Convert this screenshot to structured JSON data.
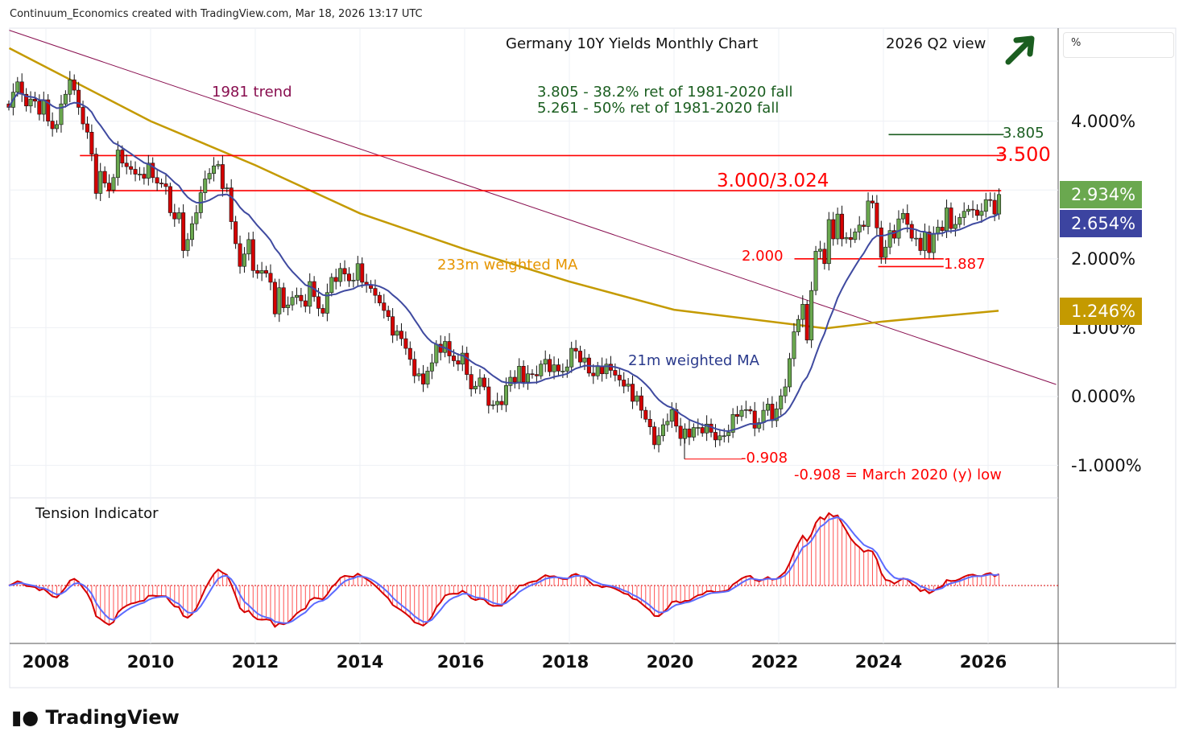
{
  "header": {
    "attribution": "Continuum_Economics created with TradingView.com, Mar 18, 2026 13:17 UTC",
    "logo": "TradingView"
  },
  "chart_data": {
    "type": "candlestick",
    "title": "Germany 10Y Yields Monthly Chart",
    "subtitle": "2026 Q2 view",
    "view_arrow": "up",
    "y_unit": "%",
    "ylim": [
      -1.45,
      5.35
    ],
    "y_ticks": [
      "4.000%",
      "2.000%",
      "1.000%",
      "0.000%",
      "-1.000%"
    ],
    "y_tick_values": [
      4,
      2,
      1,
      0,
      -1
    ],
    "x_ticks": [
      "2008",
      "2010",
      "2012",
      "2014",
      "2016",
      "2018",
      "2020",
      "2022",
      "2024",
      "2026"
    ],
    "x_tick_years": [
      2008,
      2010,
      2012,
      2014,
      2016,
      2018,
      2020,
      2022,
      2024,
      2026
    ],
    "start_month": "2007-04",
    "monthly_close": [
      4.2,
      4.42,
      4.57,
      4.39,
      4.22,
      4.32,
      4.29,
      4.1,
      4.31,
      4.0,
      3.89,
      3.95,
      4.25,
      4.39,
      4.6,
      4.45,
      4.2,
      3.96,
      3.84,
      3.52,
      2.95,
      3.27,
      3.1,
      3.0,
      3.18,
      3.58,
      3.39,
      3.34,
      3.3,
      3.23,
      3.23,
      3.17,
      3.39,
      3.18,
      3.1,
      3.09,
      3.05,
      2.67,
      2.58,
      2.67,
      2.12,
      2.28,
      2.51,
      2.67,
      2.96,
      3.16,
      3.24,
      3.35,
      3.37,
      3.02,
      3.03,
      2.54,
      2.22,
      1.89,
      2.07,
      2.28,
      1.83,
      1.79,
      1.83,
      1.79,
      1.66,
      1.2,
      1.58,
      1.29,
      1.33,
      1.44,
      1.47,
      1.39,
      1.31,
      1.67,
      1.45,
      1.28,
      1.21,
      1.51,
      1.73,
      1.67,
      1.86,
      1.78,
      1.68,
      1.69,
      1.93,
      1.66,
      1.62,
      1.57,
      1.47,
      1.36,
      1.25,
      1.16,
      0.89,
      0.95,
      0.84,
      0.7,
      0.54,
      0.3,
      0.33,
      0.18,
      0.37,
      0.49,
      0.76,
      0.64,
      0.8,
      0.59,
      0.52,
      0.47,
      0.63,
      0.32,
      0.11,
      0.15,
      0.27,
      0.14,
      -0.13,
      -0.12,
      -0.07,
      -0.12,
      0.16,
      0.28,
      0.21,
      0.44,
      0.21,
      0.33,
      0.32,
      0.3,
      0.47,
      0.54,
      0.36,
      0.46,
      0.37,
      0.37,
      0.43,
      0.7,
      0.66,
      0.5,
      0.56,
      0.34,
      0.3,
      0.44,
      0.33,
      0.47,
      0.38,
      0.31,
      0.24,
      0.15,
      0.18,
      -0.07,
      0.01,
      -0.2,
      -0.33,
      -0.44,
      -0.7,
      -0.57,
      -0.41,
      -0.36,
      -0.19,
      -0.43,
      -0.61,
      -0.47,
      -0.59,
      -0.45,
      -0.45,
      -0.53,
      -0.4,
      -0.52,
      -0.63,
      -0.57,
      -0.57,
      -0.52,
      -0.26,
      -0.29,
      -0.2,
      -0.19,
      -0.21,
      -0.46,
      -0.38,
      -0.2,
      -0.11,
      -0.35,
      -0.18,
      0.01,
      0.14,
      0.55,
      0.94,
      1.12,
      1.34,
      0.82,
      1.54,
      2.11,
      2.14,
      1.93,
      2.57,
      2.29,
      2.65,
      2.29,
      2.31,
      2.28,
      2.39,
      2.49,
      2.47,
      2.84,
      2.81,
      2.45,
      2.02,
      2.17,
      2.41,
      2.3,
      2.58,
      2.66,
      2.5,
      2.3,
      2.3,
      2.12,
      2.39,
      2.09,
      2.36,
      2.46,
      2.41,
      2.74,
      2.44,
      2.5,
      2.6,
      2.69,
      2.72,
      2.71,
      2.63,
      2.69,
      2.86,
      2.85,
      2.65,
      2.934
    ],
    "ma233_anchors": [
      [
        2007.3,
        5.06
      ],
      [
        2010,
        4.0
      ],
      [
        2012,
        3.36
      ],
      [
        2014,
        2.66
      ],
      [
        2016,
        2.14
      ],
      [
        2018,
        1.67
      ],
      [
        2020,
        1.26
      ],
      [
        2022.9,
        0.99
      ],
      [
        2024,
        1.09
      ],
      [
        2026.2,
        1.246
      ]
    ],
    "trend_1981": [
      [
        2007.3,
        5.32
      ],
      [
        2027.3,
        0.175
      ]
    ],
    "levels": [
      {
        "value": 3.805,
        "from": 2024.1,
        "to": 2026.3,
        "color": "#1b5e20",
        "label": "3.805"
      },
      {
        "value": 3.5,
        "from": 2008.65,
        "to": 2026.3,
        "color": "#ff0000",
        "label": "3.500"
      },
      {
        "value": 2.99,
        "from": 2009.15,
        "to": 2026.25,
        "color": "#ff0000",
        "label": "3.000/3.024"
      },
      {
        "value": 2.0,
        "from": 2022.3,
        "to": 2025.15,
        "color": "#ff0000",
        "label": "2.000"
      },
      {
        "value": 1.887,
        "from": 2023.9,
        "to": 2025.15,
        "color": "#ff0000",
        "label": "1.887"
      },
      {
        "value": -0.908,
        "from": 2020.2,
        "to": 2021.3,
        "color": "#ff0000",
        "label": "-0.908"
      }
    ],
    "annotations": {
      "trend": "1981 trend",
      "ret382": "3.805 - 38.2% ret of 1981-2020 fall",
      "ret50": "5.261 - 50% ret of 1981-2020 fall",
      "ma233": "233m weighted MA",
      "ma21": "21m weighted MA",
      "low_note": "-0.908 = March 2020 (y) low"
    },
    "last_values": {
      "close": "2.934%",
      "ma21": "2.654%",
      "ma233": "1.246%"
    },
    "indicator": {
      "title": "Tension Indicator"
    },
    "colors": {
      "up": "#6aa84f",
      "down": "#d50000",
      "ma21": "#3f4aa0",
      "ma233": "#c49a00",
      "trend": "#880e4f",
      "green": "#1b5e20",
      "red": "#ff0000"
    }
  }
}
